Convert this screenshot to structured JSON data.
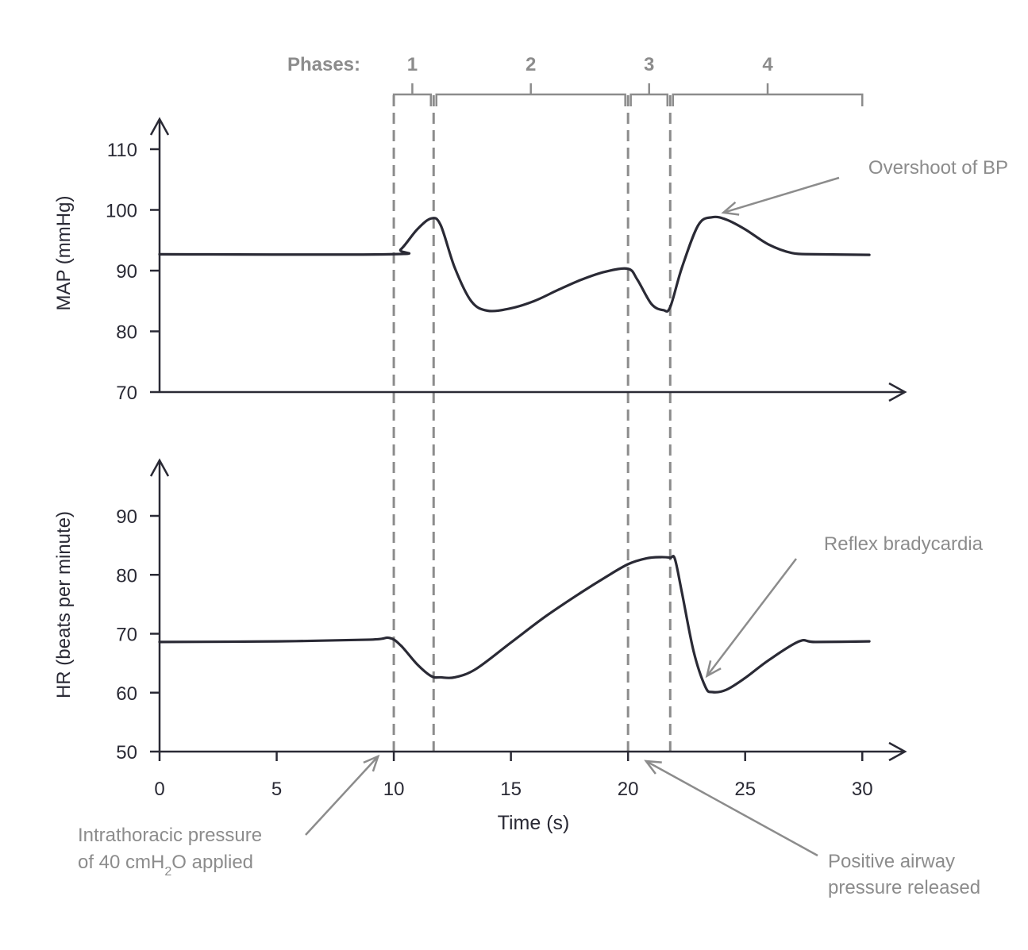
{
  "chart_data": {
    "type": "line",
    "x_axis": {
      "label": "Time (s)",
      "range": [
        0,
        31
      ],
      "ticks": [
        0,
        5,
        10,
        15,
        20,
        25,
        30
      ]
    },
    "phases": {
      "label": "Phases:",
      "items": [
        {
          "name": "1",
          "start": 10,
          "end": 11.7
        },
        {
          "name": "2",
          "start": 11.7,
          "end": 20
        },
        {
          "name": "3",
          "start": 20,
          "end": 21.8
        },
        {
          "name": "4",
          "start": 21.8,
          "end": 30
        }
      ],
      "boundaries": [
        10,
        11.7,
        20,
        21.8
      ]
    },
    "panels": [
      {
        "id": "map",
        "ylabel": "MAP (mmHg)",
        "ylim": [
          70,
          113
        ],
        "yticks": [
          70,
          80,
          90,
          100,
          110
        ],
        "series": [
          {
            "x": [
              0,
              9.8,
              10.3,
              11.0,
              11.6,
              12.0,
              12.6,
              13.3,
              14.0,
              15.0,
              16.0,
              17.0,
              18.0,
              19.0,
              20.0,
              20.4,
              21.0,
              21.5,
              21.8,
              22.3,
              23.0,
              23.6,
              24.2,
              25.0,
              26.0,
              27.0,
              28.0,
              30.3
            ],
            "values": [
              92.7,
              92.7,
              93.5,
              96.8,
              98.6,
              97.5,
              90.5,
              85.0,
              83.4,
              83.8,
              85.0,
              86.8,
              88.5,
              89.8,
              90.3,
              88.5,
              84.5,
              83.5,
              84.0,
              90.5,
              97.5,
              98.8,
              98.4,
              96.8,
              94.3,
              92.9,
              92.7,
              92.6
            ]
          }
        ],
        "annotations": [
          {
            "text": "Overshoot of BP",
            "x": 23.8,
            "y": 98.9
          }
        ]
      },
      {
        "id": "hr",
        "ylabel": "HR (beats per minute)",
        "ylim": [
          50,
          98
        ],
        "yticks": [
          50,
          60,
          70,
          80,
          90
        ],
        "series": [
          {
            "x": [
              0,
              5,
              9.0,
              9.8,
              10.3,
              11.0,
              11.6,
              12.0,
              12.6,
              13.5,
              15.0,
              16.5,
              18.0,
              19.0,
              20.0,
              20.8,
              21.4,
              21.8,
              22.0,
              22.3,
              22.8,
              23.3,
              23.6,
              24.2,
              25.0,
              26.0,
              27.3,
              28.0,
              30.3
            ],
            "values": [
              68.6,
              68.7,
              69.0,
              69.3,
              68.0,
              64.8,
              62.8,
              62.6,
              62.6,
              64.0,
              68.5,
              73.0,
              77.0,
              79.5,
              81.8,
              82.8,
              83.0,
              82.9,
              82.7,
              77.0,
              67.0,
              61.0,
              60.1,
              60.5,
              62.5,
              65.5,
              68.7,
              68.6,
              68.7
            ]
          }
        ],
        "annotations": [
          {
            "text": "Reflex bradycardia",
            "x": 23.3,
            "y": 63.5
          }
        ]
      }
    ],
    "notes": [
      {
        "id": "applied",
        "line1": "Intrathoracic pressure",
        "line2_pre": "of 40 cmH",
        "line2_sub": "2",
        "line2_post": "O applied",
        "x": 9.6,
        "y": 50
      },
      {
        "id": "released",
        "line1": "Positive airway",
        "line2": "pressure released",
        "x": 20.7,
        "y": 50
      }
    ]
  }
}
